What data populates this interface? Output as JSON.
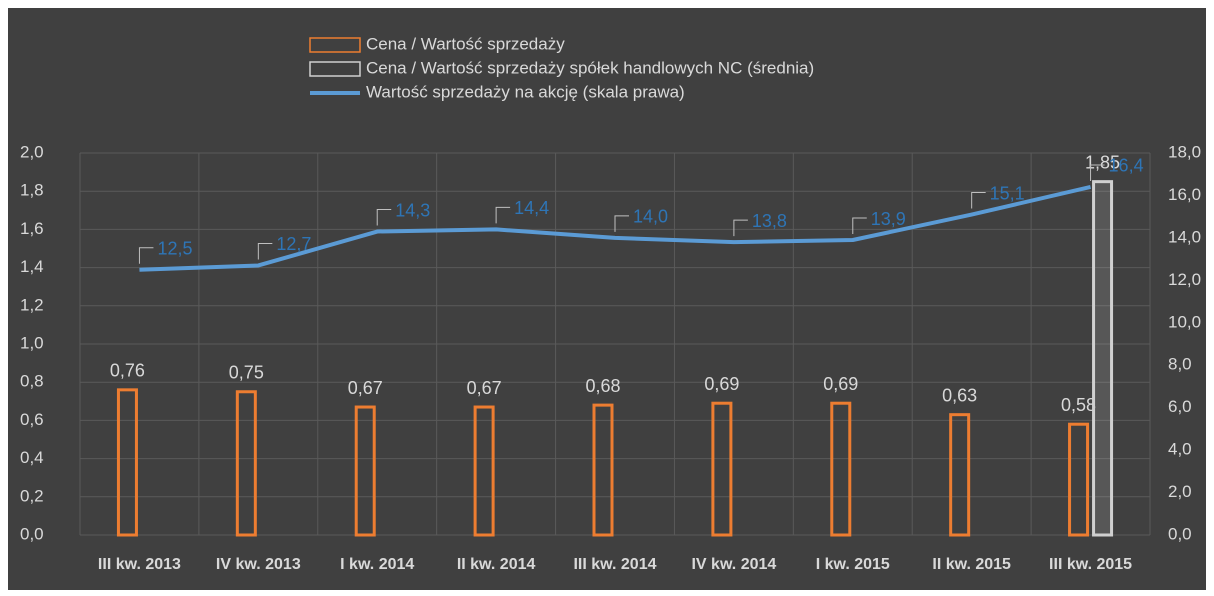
{
  "chart_data": {
    "type": "bar",
    "categories": [
      "III kw. 2013",
      "IV kw. 2013",
      "I kw. 2014",
      "II kw. 2014",
      "III kw. 2014",
      "IV kw. 2014",
      "I kw. 2015",
      "II kw. 2015",
      "III kw. 2015"
    ],
    "series": [
      {
        "name": "Cena / Wartość sprzedaży",
        "type": "bar",
        "color": "#ed7d31",
        "values": [
          0.76,
          0.75,
          0.67,
          0.67,
          0.68,
          0.69,
          0.69,
          0.63,
          0.58
        ],
        "value_labels": [
          "0,76",
          "0,75",
          "0,67",
          "0,67",
          "0,68",
          "0,69",
          "0,69",
          "0,63",
          "0,58"
        ]
      },
      {
        "name": "Cena / Wartość sprzedaży spółek handlowych NC (średnia)",
        "type": "bar",
        "color": "#d0d0d0",
        "values": [
          null,
          null,
          null,
          null,
          null,
          null,
          null,
          null,
          1.85
        ],
        "value_labels": [
          null,
          null,
          null,
          null,
          null,
          null,
          null,
          null,
          "1,85"
        ]
      },
      {
        "name": "Wartość sprzedaży na akcję (skala prawa)",
        "type": "line",
        "axis": "y2",
        "color": "#5b9bd5",
        "values": [
          12.5,
          12.7,
          14.3,
          14.4,
          14.0,
          13.8,
          13.9,
          15.1,
          16.4
        ],
        "value_labels": [
          "12,5",
          "12,7",
          "14,3",
          "14,4",
          "14,0",
          "13,8",
          "13,9",
          "15,1",
          "16,4"
        ]
      }
    ],
    "ylim": [
      0,
      2
    ],
    "yticks": [
      {
        "value": 0,
        "label": "0,0"
      },
      {
        "value": 0.2,
        "label": "0,2"
      },
      {
        "value": 0.4,
        "label": "0,4"
      },
      {
        "value": 0.6,
        "label": "0,6"
      },
      {
        "value": 0.8,
        "label": "0,8"
      },
      {
        "value": 1.0,
        "label": "1,0"
      },
      {
        "value": 1.2,
        "label": "1,2"
      },
      {
        "value": 1.4,
        "label": "1,4"
      },
      {
        "value": 1.6,
        "label": "1,6"
      },
      {
        "value": 1.8,
        "label": "1,8"
      },
      {
        "value": 2.0,
        "label": "2,0"
      }
    ],
    "y2lim": [
      0,
      18
    ],
    "y2ticks": [
      {
        "value": 0,
        "label": "0,0"
      },
      {
        "value": 2,
        "label": "2,0"
      },
      {
        "value": 4,
        "label": "4,0"
      },
      {
        "value": 6,
        "label": "6,0"
      },
      {
        "value": 8,
        "label": "8,0"
      },
      {
        "value": 10,
        "label": "10,0"
      },
      {
        "value": 12,
        "label": "12,0"
      },
      {
        "value": 14,
        "label": "14,0"
      },
      {
        "value": 16,
        "label": "16,0"
      },
      {
        "value": 18,
        "label": "18,0"
      }
    ],
    "grid": true,
    "legend": "top"
  }
}
